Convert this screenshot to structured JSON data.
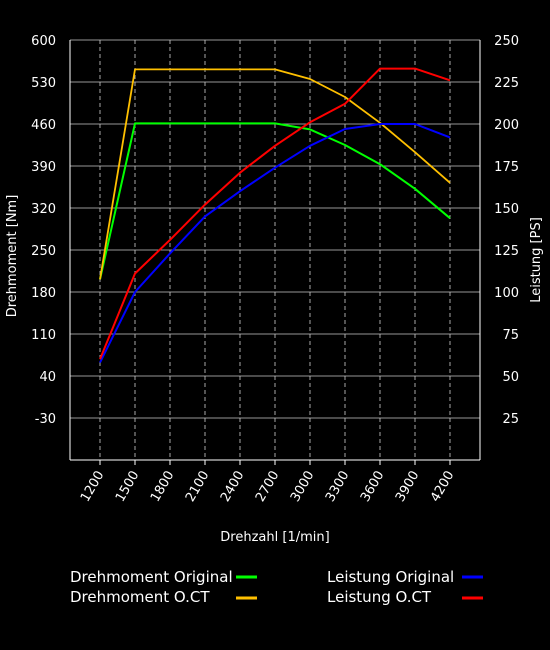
{
  "chart_data": {
    "type": "line",
    "title": "",
    "xlabel": "Drehzahl [1/min]",
    "ylabel_left": "Drehmoment [Nm]",
    "ylabel_right": "Leistung [PS]",
    "x": [
      1200,
      1500,
      1800,
      2100,
      2400,
      2700,
      3000,
      3300,
      3600,
      3900,
      4200
    ],
    "x_tick_labels": [
      "1200",
      "1500",
      "1800",
      "2100",
      "2400",
      "2700",
      "3000",
      "3300",
      "3600",
      "3900",
      "4200"
    ],
    "y_left_ticks": [
      "600",
      "530",
      "460",
      "390",
      "320",
      "250",
      "180",
      "110",
      "40",
      "-30"
    ],
    "y_left_range": [
      -100,
      600
    ],
    "y_right_ticks": [
      "250",
      "225",
      "200",
      "175",
      "150",
      "125",
      "100",
      "75",
      "50",
      "25"
    ],
    "y_right_range": [
      0,
      250
    ],
    "grid": true,
    "legend_position": "bottom",
    "series": [
      {
        "name": "Drehmoment Original",
        "axis": "left",
        "color": "#00ff00",
        "values": [
          201,
          461,
          461,
          461,
          461,
          461,
          451,
          425,
          393,
          352,
          303
        ]
      },
      {
        "name": "Drehmoment O.CT",
        "axis": "left",
        "color": "#ffc000",
        "values": [
          201,
          551,
          551,
          551,
          551,
          551,
          535,
          505,
          462,
          413,
          362
        ]
      },
      {
        "name": "Leistung Original",
        "axis": "right",
        "color": "#0000ff",
        "values": [
          58,
          100,
          123,
          145,
          160,
          174,
          187,
          197,
          200,
          200,
          192
        ]
      },
      {
        "name": "Leistung O.CT",
        "axis": "right",
        "color": "#ff0000",
        "values": [
          60,
          111,
          131,
          152,
          171,
          187,
          201,
          212,
          233,
          233,
          226
        ]
      }
    ]
  }
}
